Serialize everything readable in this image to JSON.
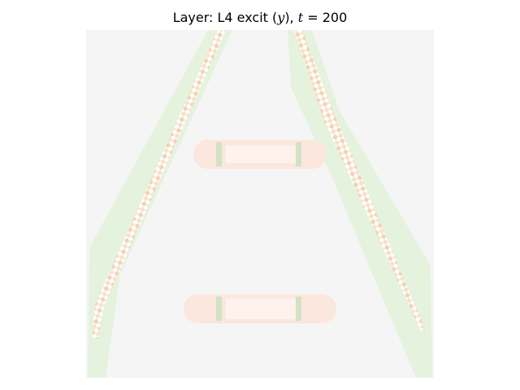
{
  "title": {
    "prefix": "Layer: L4 excit (",
    "var": "y",
    "mid": "), ",
    "tvar": "t",
    "eq": " = 200"
  },
  "colors": {
    "background": "#f5f5f5",
    "halo": "#e5f2de",
    "bar_fill": "#fbe7de",
    "bar_inner": "#fdf2ec",
    "edge_green": "#d2e3c2",
    "edge_orange": "#f6cfae"
  }
}
